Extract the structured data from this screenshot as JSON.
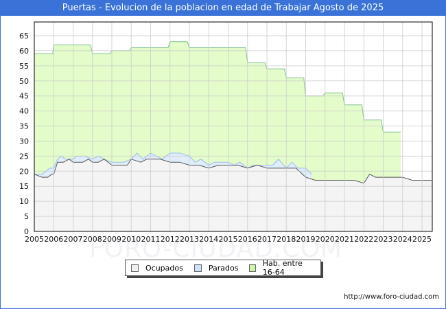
{
  "title": "Puertas - Evolucion de la poblacion en edad de Trabajar Agosto de 2025",
  "watermark": "FORO-CIUDAD.COM",
  "footer_url": "http://www.foro-ciudad.com",
  "legend": [
    {
      "label": "Ocupados",
      "color": "#f0f0f0"
    },
    {
      "label": "Parados",
      "color": "#cfe2f8"
    },
    {
      "label": "Hab. entre 16-64",
      "color": "#ccf5a8"
    }
  ],
  "colors": {
    "title_bg": "#3a72d8",
    "hab_fill": "#e4fcca",
    "hab_line": "#7fbf8f",
    "parados_fill": "#e0edfb",
    "parados_line": "#99bbee",
    "ocupados_fill": "#f4f4f4",
    "ocupados_line": "#555555",
    "grid": "#cccccc"
  },
  "chart_data": {
    "type": "area",
    "title": "Puertas - Evolucion de la poblacion en edad de Trabajar Agosto de 2025",
    "xlabel": "",
    "ylabel": "",
    "ylim": [
      0,
      65
    ],
    "xlim": [
      2005,
      2025.6
    ],
    "y_ticks": [
      0,
      5,
      10,
      15,
      20,
      25,
      30,
      35,
      40,
      45,
      50,
      55,
      60,
      65
    ],
    "x_ticks": [
      "2005",
      "2006",
      "2007",
      "2008",
      "2009",
      "2010",
      "2011",
      "2012",
      "2013",
      "2014",
      "2015",
      "2016",
      "2017",
      "2018",
      "2019",
      "2020",
      "2021",
      "2022",
      "2023",
      "2024",
      "2025"
    ],
    "grid": true,
    "legend_position": "bottom",
    "series": [
      {
        "name": "Hab. entre 16-64",
        "x": [
          2005,
          2005.95,
          2006,
          2007.9,
          2008,
          2008.9,
          2009,
          2009.9,
          2010,
          2011.9,
          2012,
          2012.9,
          2013,
          2015.9,
          2016,
          2016.9,
          2017,
          2017.9,
          2018,
          2018.9,
          2019,
          2019.9,
          2020,
          2020.9,
          2021,
          2021.9,
          2022,
          2022.9,
          2023,
          2023.9
        ],
        "values": [
          59,
          59,
          62,
          62,
          59,
          59,
          60,
          60,
          61,
          61,
          63,
          63,
          61,
          61,
          56,
          56,
          54,
          54,
          51,
          51,
          45,
          45,
          46,
          46,
          42,
          42,
          37,
          37,
          33,
          33
        ]
      },
      {
        "name": "Parados",
        "x": [
          2005,
          2005.4,
          2005.6,
          2005.8,
          2006,
          2006.2,
          2006.4,
          2006.6,
          2007,
          2007.2,
          2007.4,
          2007.6,
          2008,
          2008.3,
          2008.6,
          2009,
          2009.3,
          2009.6,
          2010,
          2010.3,
          2010.6,
          2011,
          2011.3,
          2011.6,
          2012,
          2012.5,
          2013,
          2013.3,
          2013.6,
          2014,
          2014.3,
          2014.6,
          2015,
          2015.3,
          2015.6,
          2016,
          2016.3,
          2016.6,
          2017,
          2017.3,
          2017.6,
          2018,
          2018.3,
          2018.6,
          2019,
          2019.3
        ],
        "values": [
          19,
          19,
          20,
          21,
          21,
          24,
          25,
          24,
          24,
          25,
          25,
          25,
          24,
          25,
          24,
          23,
          23,
          23,
          24,
          26,
          24,
          26,
          25,
          24,
          26,
          26,
          25,
          23,
          24,
          22,
          23,
          23,
          23,
          22,
          23,
          21,
          22,
          22,
          22,
          22,
          24,
          21,
          23,
          21,
          21,
          19
        ]
      },
      {
        "name": "Ocupados",
        "x": [
          2005,
          2005.4,
          2005.7,
          2005.9,
          2006,
          2006.2,
          2006.5,
          2006.8,
          2007,
          2007.5,
          2007.8,
          2008,
          2008.3,
          2008.6,
          2009,
          2009.5,
          2009.8,
          2010,
          2010.5,
          2010.8,
          2011,
          2011.5,
          2012,
          2012.5,
          2013,
          2013.5,
          2014,
          2014.5,
          2015,
          2015.5,
          2016,
          2016.5,
          2017,
          2017.5,
          2018,
          2018.5,
          2019,
          2019.5,
          2020,
          2020.5,
          2021,
          2021.5,
          2022,
          2022.3,
          2022.6,
          2023,
          2023.5,
          2024,
          2024.5,
          2025,
          2025.5
        ],
        "values": [
          19,
          18,
          18,
          19,
          19,
          23,
          23,
          24,
          23,
          23,
          24,
          23,
          23,
          24,
          22,
          22,
          22,
          24,
          23,
          24,
          24,
          24,
          23,
          23,
          22,
          22,
          21,
          22,
          22,
          22,
          21,
          22,
          21,
          21,
          21,
          21,
          18,
          17,
          17,
          17,
          17,
          17,
          16,
          19,
          18,
          18,
          18,
          18,
          17,
          17,
          17
        ]
      }
    ]
  }
}
